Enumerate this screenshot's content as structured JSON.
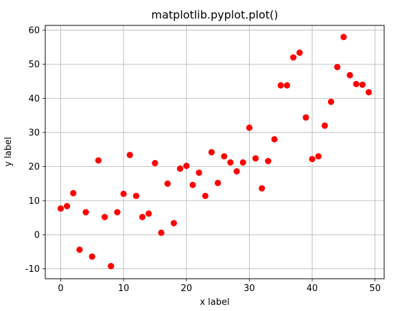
{
  "chart_data": {
    "type": "scatter",
    "title": "matplotlib.pyplot.plot()",
    "xlabel": "x label",
    "ylabel": "y label",
    "xlim": [
      -2.45,
      51.45
    ],
    "ylim": [
      -12.9,
      61.4
    ],
    "xticks": [
      0,
      10,
      20,
      30,
      40,
      50
    ],
    "yticks": [
      -10,
      0,
      10,
      20,
      30,
      40,
      50,
      60
    ],
    "grid": true,
    "marker_color": "#ff0000",
    "series": [
      {
        "x": [
          0,
          1,
          2,
          3,
          4,
          5,
          6,
          7,
          8,
          9,
          10,
          11,
          12,
          13,
          14,
          15,
          16,
          17,
          18,
          19,
          20,
          21,
          22,
          23,
          24,
          25,
          26,
          27,
          28,
          29,
          30,
          31,
          32,
          33,
          34,
          35,
          36,
          37,
          38,
          39,
          40,
          41,
          42,
          43,
          44,
          45,
          46,
          47,
          48,
          49
        ],
        "y": [
          7.7,
          8.4,
          12.2,
          -4.4,
          6.6,
          -6.4,
          21.8,
          5.2,
          -9.2,
          6.6,
          12.0,
          23.4,
          11.4,
          5.2,
          6.2,
          21.0,
          0.6,
          15.0,
          3.4,
          19.4,
          20.2,
          14.6,
          18.2,
          11.4,
          24.2,
          15.2,
          23.0,
          21.2,
          18.6,
          21.2,
          31.4,
          22.4,
          13.6,
          21.6,
          28.0,
          43.8,
          43.8,
          52.0,
          53.4,
          34.4,
          22.2,
          23.0,
          32.0,
          39.0,
          49.2,
          58.0,
          46.8,
          44.2,
          44.0,
          41.8
        ]
      }
    ]
  }
}
